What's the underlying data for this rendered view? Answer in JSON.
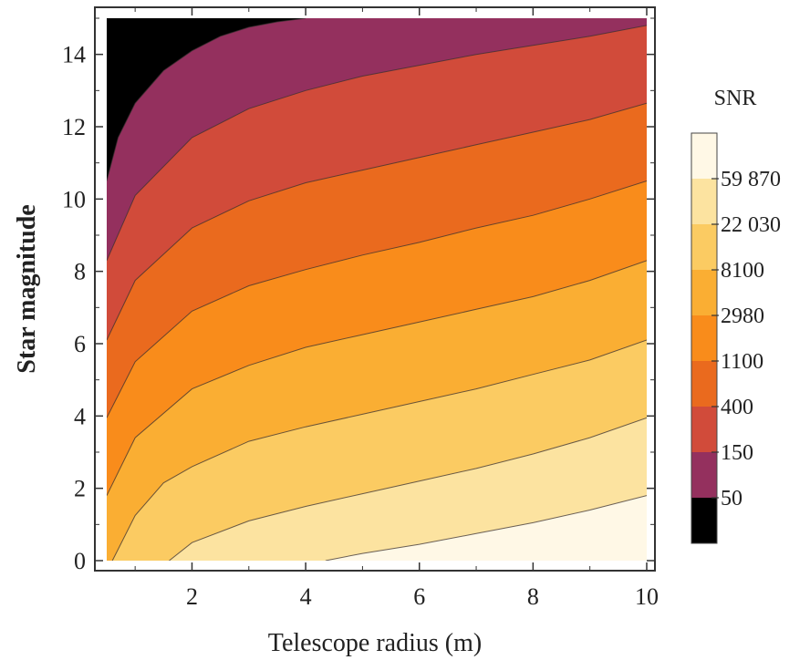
{
  "chart_data": {
    "type": "contour",
    "title": "",
    "xlabel": "Telescope radius (m)",
    "ylabel": "Star magnitude",
    "xlim": [
      0.5,
      10
    ],
    "ylim": [
      0,
      15
    ],
    "xticks": [
      "2",
      "4",
      "6",
      "8",
      "10"
    ],
    "yticks": [
      "0",
      "2",
      "4",
      "6",
      "8",
      "10",
      "12",
      "14"
    ],
    "colorbar": {
      "title": "SNR",
      "levels": [
        "59 870",
        "22 030",
        "8100",
        "2980",
        "1100",
        "400",
        "150",
        "50"
      ],
      "colors": [
        "#FFF8E6",
        "#FCE3A0",
        "#FBCB62",
        "#FAAE33",
        "#F98C1B",
        "#EA6A1E",
        "#D14B3A",
        "#94305E",
        "#000000"
      ]
    },
    "contour_lines": [
      {
        "level": "50",
        "points": [
          [
            0.5,
            10.5
          ],
          [
            0.7,
            11.7
          ],
          [
            1.0,
            12.65
          ],
          [
            1.5,
            13.55
          ],
          [
            2.0,
            14.1
          ],
          [
            2.5,
            14.5
          ],
          [
            3.0,
            14.75
          ],
          [
            3.5,
            14.9
          ],
          [
            4.0,
            15.0
          ]
        ]
      },
      {
        "level": "150",
        "points": [
          [
            0.5,
            8.3
          ],
          [
            1.0,
            10.1
          ],
          [
            2.0,
            11.7
          ],
          [
            3.0,
            12.5
          ],
          [
            4.0,
            13.0
          ],
          [
            5.0,
            13.4
          ],
          [
            6.0,
            13.7
          ],
          [
            7.0,
            14.0
          ],
          [
            8.0,
            14.25
          ],
          [
            9.0,
            14.5
          ],
          [
            10.0,
            14.8
          ]
        ]
      },
      {
        "level": "400",
        "points": [
          [
            0.5,
            6.1
          ],
          [
            1.0,
            7.75
          ],
          [
            2.0,
            9.2
          ],
          [
            3.0,
            9.95
          ],
          [
            4.0,
            10.45
          ],
          [
            5.0,
            10.8
          ],
          [
            6.0,
            11.15
          ],
          [
            7.0,
            11.5
          ],
          [
            8.0,
            11.85
          ],
          [
            9.0,
            12.2
          ],
          [
            10.0,
            12.65
          ]
        ]
      },
      {
        "level": "1100",
        "points": [
          [
            0.5,
            3.95
          ],
          [
            1.0,
            5.5
          ],
          [
            2.0,
            6.9
          ],
          [
            3.0,
            7.6
          ],
          [
            4.0,
            8.05
          ],
          [
            5.0,
            8.45
          ],
          [
            6.0,
            8.8
          ],
          [
            7.0,
            9.2
          ],
          [
            8.0,
            9.55
          ],
          [
            9.0,
            10.0
          ],
          [
            10.0,
            10.5
          ]
        ]
      },
      {
        "level": "2980",
        "points": [
          [
            0.5,
            1.8
          ],
          [
            1.0,
            3.4
          ],
          [
            2.0,
            4.75
          ],
          [
            3.0,
            5.4
          ],
          [
            4.0,
            5.9
          ],
          [
            5.0,
            6.25
          ],
          [
            6.0,
            6.6
          ],
          [
            7.0,
            6.95
          ],
          [
            8.0,
            7.3
          ],
          [
            9.0,
            7.75
          ],
          [
            10.0,
            8.3
          ]
        ]
      },
      {
        "level": "8100",
        "points": [
          [
            0.6,
            0.0
          ],
          [
            1.0,
            1.25
          ],
          [
            1.5,
            2.15
          ],
          [
            2.0,
            2.6
          ],
          [
            3.0,
            3.3
          ],
          [
            4.0,
            3.7
          ],
          [
            5.0,
            4.05
          ],
          [
            6.0,
            4.4
          ],
          [
            7.0,
            4.75
          ],
          [
            8.0,
            5.15
          ],
          [
            9.0,
            5.55
          ],
          [
            10.0,
            6.1
          ]
        ]
      },
      {
        "level": "22 030",
        "points": [
          [
            1.6,
            0.0
          ],
          [
            2.0,
            0.5
          ],
          [
            3.0,
            1.1
          ],
          [
            4.0,
            1.5
          ],
          [
            5.0,
            1.85
          ],
          [
            6.0,
            2.2
          ],
          [
            7.0,
            2.55
          ],
          [
            8.0,
            2.95
          ],
          [
            9.0,
            3.4
          ],
          [
            10.0,
            3.95
          ]
        ]
      },
      {
        "level": "59 870",
        "points": [
          [
            4.35,
            0.0
          ],
          [
            5.0,
            0.2
          ],
          [
            6.0,
            0.45
          ],
          [
            7.0,
            0.75
          ],
          [
            8.0,
            1.05
          ],
          [
            9.0,
            1.4
          ],
          [
            10.0,
            1.8
          ]
        ]
      }
    ]
  }
}
